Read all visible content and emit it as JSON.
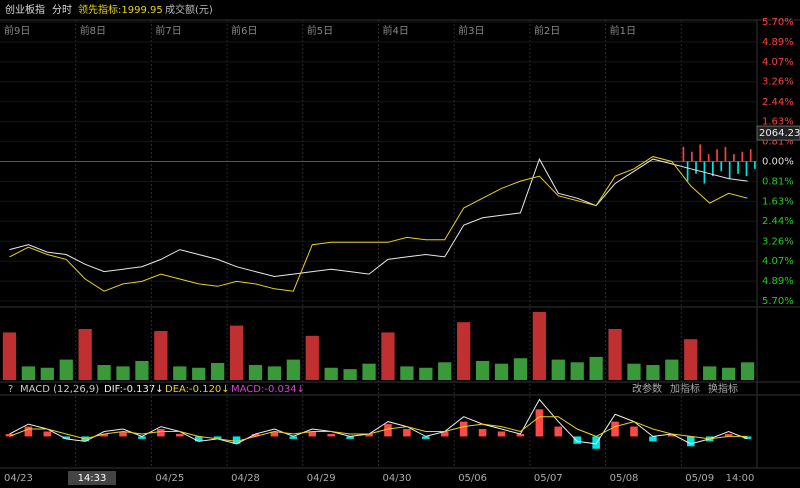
{
  "chart_data": {
    "type": "line",
    "header": [
      "创业板指",
      "分时",
      "领先指标:1999.95",
      "成交额(元)"
    ],
    "days": [
      "前9日",
      "前8日",
      "前7日",
      "前6日",
      "前5日",
      "前4日",
      "前3日",
      "前2日",
      "前1日"
    ],
    "price_label": "2064.23",
    "ylim": [
      -5.7,
      5.7
    ],
    "yticks": [
      {
        "value": 5.7,
        "label": "5.70%"
      },
      {
        "value": 4.89,
        "label": "4.89%"
      },
      {
        "value": 4.07,
        "label": "4.07%"
      },
      {
        "value": 3.26,
        "label": "3.26%"
      },
      {
        "value": 2.44,
        "label": "2.44%"
      },
      {
        "value": 1.63,
        "label": "1.63%"
      },
      {
        "value": 0.81,
        "label": "0.81%"
      },
      {
        "value": 0,
        "label": "0.00%"
      },
      {
        "value": -0.81,
        "label": "0.81%"
      },
      {
        "value": -1.63,
        "label": "1.63%"
      },
      {
        "value": -2.44,
        "label": "2.44%"
      },
      {
        "value": -3.26,
        "label": "3.26%"
      },
      {
        "value": -4.07,
        "label": "4.07%"
      },
      {
        "value": -4.89,
        "label": "4.89%"
      },
      {
        "value": -5.7,
        "label": "5.70%"
      }
    ],
    "series": [
      {
        "name": "创业板指",
        "color": "#e8e8e8",
        "values": [
          -3.6,
          -3.4,
          -3.7,
          -3.8,
          -4.2,
          -4.5,
          -4.4,
          -4.3,
          -4.0,
          -3.6,
          -3.8,
          -4.0,
          -4.3,
          -4.5,
          -4.7,
          -4.6,
          -4.5,
          -4.4,
          -4.5,
          -4.6,
          -4.0,
          -3.9,
          -3.8,
          -3.9,
          -2.6,
          -2.3,
          -2.2,
          -2.1,
          0.1,
          -1.3,
          -1.5,
          -1.8,
          -0.9,
          -0.4,
          0.1,
          -0.1,
          -0.3,
          -0.5,
          -0.7,
          -0.8
        ]
      },
      {
        "name": "领先指标",
        "color": "#e6d21e",
        "values": [
          -3.9,
          -3.5,
          -3.8,
          -4.0,
          -4.8,
          -5.3,
          -5.0,
          -4.9,
          -4.6,
          -4.8,
          -5.0,
          -5.1,
          -4.9,
          -5.0,
          -5.2,
          -5.3,
          -3.4,
          -3.3,
          -3.3,
          -3.3,
          -3.3,
          -3.1,
          -3.2,
          -3.2,
          -1.9,
          -1.5,
          -1.1,
          -0.8,
          -0.6,
          -1.4,
          -1.6,
          -1.8,
          -0.6,
          -0.3,
          0.2,
          0.0,
          -1.0,
          -1.7,
          -1.3,
          -1.5
        ]
      }
    ],
    "today_bars": [
      0.6,
      -0.8,
      0.4,
      -0.5,
      0.7,
      -0.9,
      0.3,
      -0.6,
      0.5,
      -0.4,
      0.6,
      -0.7,
      0.3,
      -0.5,
      0.4,
      -0.6,
      0.5,
      -0.3
    ],
    "volume": {
      "color": "#3a9a3a",
      "ylim": [
        0,
        100
      ],
      "values": [
        70,
        20,
        18,
        30,
        75,
        22,
        20,
        28,
        72,
        20,
        18,
        25,
        80,
        22,
        20,
        30,
        65,
        18,
        16,
        24,
        70,
        20,
        18,
        26,
        85,
        28,
        24,
        32,
        100,
        30,
        26,
        34,
        75,
        24,
        22,
        30,
        60,
        20,
        18,
        26
      ]
    },
    "macd": {
      "title": "MACD (12,26,9)",
      "dif_label": "DIF:-0.137↓",
      "dea_label": "DEA:-0.120↓",
      "macd_label": "MACD:-0.034↓",
      "buttons": [
        "改参数",
        "加指标",
        "换指标"
      ],
      "ylim": [
        -1.2,
        1.6
      ],
      "hist": [
        0.1,
        0.4,
        0.2,
        -0.1,
        -0.2,
        0.1,
        0.2,
        -0.1,
        0.3,
        0.1,
        -0.2,
        -0.1,
        -0.3,
        0.1,
        0.2,
        -0.1,
        0.2,
        0.1,
        -0.1,
        0.1,
        0.5,
        0.3,
        -0.1,
        0.2,
        0.6,
        0.3,
        0.2,
        0.1,
        1.1,
        0.4,
        -0.3,
        -0.5,
        0.6,
        0.4,
        -0.2,
        0.1,
        -0.4,
        -0.2,
        0.1,
        -0.1
      ],
      "dif": [
        0.1,
        0.5,
        0.3,
        -0.1,
        -0.2,
        0.2,
        0.3,
        0.0,
        0.4,
        0.2,
        -0.2,
        -0.1,
        -0.3,
        0.1,
        0.3,
        0.0,
        0.3,
        0.2,
        0.0,
        0.1,
        0.6,
        0.4,
        0.0,
        0.2,
        0.8,
        0.5,
        0.3,
        0.1,
        1.5,
        0.6,
        -0.2,
        -0.3,
        0.9,
        0.6,
        0.0,
        0.1,
        -0.3,
        -0.1,
        0.2,
        -0.1
      ],
      "dea": [
        0.0,
        0.3,
        0.3,
        0.1,
        -0.1,
        0.1,
        0.2,
        0.1,
        0.2,
        0.2,
        0.0,
        -0.1,
        -0.2,
        0.0,
        0.2,
        0.1,
        0.2,
        0.2,
        0.1,
        0.1,
        0.3,
        0.4,
        0.2,
        0.2,
        0.4,
        0.5,
        0.4,
        0.2,
        0.8,
        0.8,
        0.3,
        0.0,
        0.4,
        0.6,
        0.3,
        0.1,
        0.0,
        -0.1,
        0.0,
        0.0
      ]
    },
    "x_labels": [
      "04/23",
      "14:33",
      "04/25",
      "04/28",
      "04/29",
      "04/30",
      "05/06",
      "05/07",
      "05/08",
      "05/09",
      "14:00"
    ]
  }
}
